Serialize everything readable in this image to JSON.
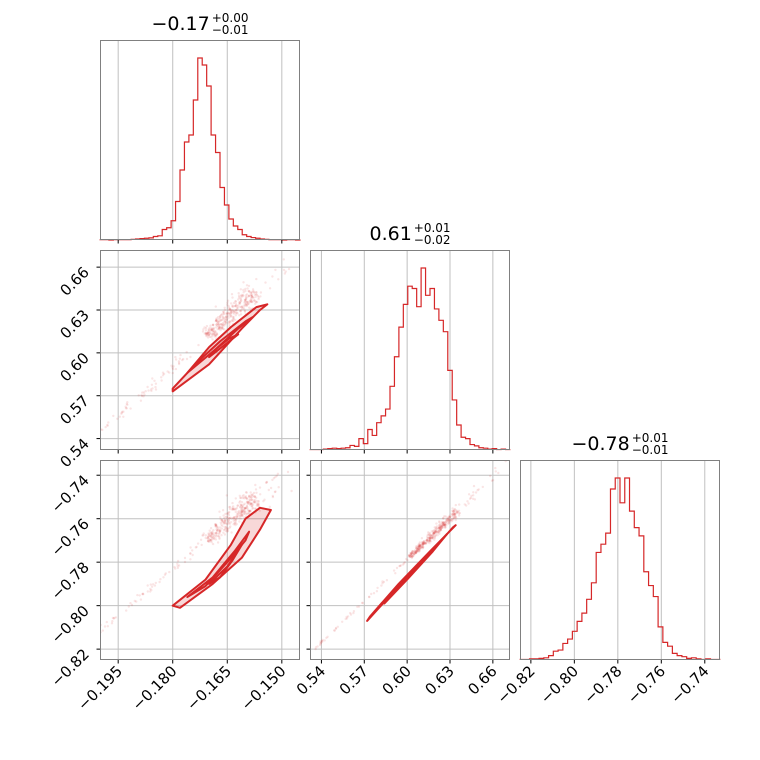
{
  "chart_data": {
    "type": "corner",
    "color": "#d62728",
    "grid": true,
    "parameters": [
      {
        "title": {
          "median": "−0.17",
          "plus": "+0.00",
          "minus": "−0.01"
        },
        "range": [
          -0.2,
          -0.145
        ],
        "ticks": [
          {
            "value": -0.195,
            "label": "−0.195"
          },
          {
            "value": -0.18,
            "label": "−0.180"
          },
          {
            "value": -0.165,
            "label": "−0.165"
          },
          {
            "value": -0.15,
            "label": "−0.150"
          }
        ],
        "histogram": {
          "x0": -0.2,
          "x1": -0.145,
          "counts": [
            1,
            1,
            0,
            1,
            1,
            1,
            1,
            2,
            3,
            4,
            5,
            6,
            10,
            12,
            30,
            35,
            55,
            110,
            200,
            280,
            300,
            400,
            520,
            500,
            440,
            300,
            250,
            150,
            100,
            60,
            40,
            30,
            15,
            10,
            7,
            5,
            3,
            2,
            1,
            1,
            1,
            0,
            1,
            1,
            0
          ]
        }
      },
      {
        "title": {
          "median": "0.61",
          "plus": "+0.01",
          "minus": "−0.02"
        },
        "range": [
          0.532,
          0.672
        ],
        "ticks": [
          {
            "value": 0.54,
            "label": "0.54"
          },
          {
            "value": 0.57,
            "label": "0.57"
          },
          {
            "value": 0.6,
            "label": "0.60"
          },
          {
            "value": 0.63,
            "label": "0.63"
          },
          {
            "value": 0.66,
            "label": "0.66"
          }
        ],
        "histogram": {
          "x0": 0.532,
          "x1": 0.672,
          "counts": [
            1,
            1,
            1,
            2,
            3,
            4,
            3,
            4,
            5,
            10,
            8,
            25,
            14,
            45,
            32,
            60,
            75,
            90,
            140,
            205,
            270,
            320,
            360,
            355,
            315,
            400,
            340,
            355,
            310,
            285,
            260,
            175,
            110,
            55,
            28,
            25,
            12,
            9,
            5,
            4,
            2,
            3,
            1,
            2,
            1
          ]
        }
      },
      {
        "title": {
          "median": "−0.78",
          "plus": "+0.01",
          "minus": "−0.01"
        },
        "range": [
          -0.825,
          -0.733
        ],
        "ticks": [
          {
            "value": -0.82,
            "label": "−0.82"
          },
          {
            "value": -0.8,
            "label": "−0.80"
          },
          {
            "value": -0.78,
            "label": "−0.78"
          },
          {
            "value": -0.76,
            "label": "−0.76"
          },
          {
            "value": -0.74,
            "label": "−0.74"
          }
        ],
        "histogram": {
          "x0": -0.825,
          "x1": -0.733,
          "counts": [
            1,
            1,
            2,
            2,
            3,
            4,
            8,
            16,
            18,
            30,
            38,
            52,
            70,
            85,
            110,
            140,
            195,
            210,
            230,
            310,
            330,
            285,
            330,
            270,
            240,
            225,
            160,
            135,
            115,
            60,
            32,
            25,
            12,
            8,
            6,
            3,
            4,
            2,
            1,
            2,
            1,
            1
          ]
        }
      }
    ],
    "pairs": [
      {
        "xparam": 0,
        "yparam": 1,
        "line": {
          "x": [
            -0.205,
            -0.148
          ],
          "y": [
            0.533,
            0.664
          ]
        },
        "core": [
          -0.182,
          -0.157
        ],
        "level_shapes": [
          [
            [
              -0.18,
              0.573
            ],
            [
              -0.17,
              0.592
            ],
            [
              -0.161,
              0.617
            ],
            [
              -0.156,
              0.63
            ],
            [
              -0.154,
              0.634
            ],
            [
              -0.157,
              0.632
            ],
            [
              -0.164,
              0.618
            ],
            [
              -0.17,
              0.604
            ],
            [
              -0.176,
              0.586
            ],
            [
              -0.18,
              0.575
            ]
          ],
          [
            [
              -0.176,
              0.586
            ],
            [
              -0.168,
              0.603
            ],
            [
              -0.162,
              0.617
            ],
            [
              -0.158,
              0.625
            ],
            [
              -0.16,
              0.622
            ],
            [
              -0.167,
              0.608
            ],
            [
              -0.173,
              0.594
            ]
          ],
          [
            [
              -0.17,
              0.597
            ],
            [
              -0.165,
              0.607
            ],
            [
              -0.162,
              0.613
            ],
            [
              -0.1645,
              0.61
            ],
            [
              -0.168,
              0.603
            ]
          ]
        ]
      },
      {
        "xparam": 0,
        "yparam": 2,
        "line": {
          "x": [
            -0.205,
            -0.148
          ],
          "y": [
            -0.818,
            -0.738
          ]
        },
        "core": [
          -0.182,
          -0.157
        ],
        "level_shapes": [
          [
            [
              -0.18,
              -0.8
            ],
            [
              -0.171,
              -0.788
            ],
            [
              -0.164,
              -0.772
            ],
            [
              -0.16,
              -0.76
            ],
            [
              -0.156,
              -0.755
            ],
            [
              -0.153,
              -0.756
            ],
            [
              -0.156,
              -0.765
            ],
            [
              -0.161,
              -0.778
            ],
            [
              -0.169,
              -0.79
            ],
            [
              -0.178,
              -0.801
            ]
          ],
          [
            [
              -0.176,
              -0.796
            ],
            [
              -0.169,
              -0.787
            ],
            [
              -0.163,
              -0.775
            ],
            [
              -0.159,
              -0.766
            ],
            [
              -0.16,
              -0.77
            ],
            [
              -0.165,
              -0.78
            ],
            [
              -0.171,
              -0.791
            ]
          ],
          [
            [
              -0.17,
              -0.79
            ],
            [
              -0.165,
              -0.782
            ],
            [
              -0.161,
              -0.772
            ],
            [
              -0.1635,
              -0.779
            ],
            [
              -0.167,
              -0.787
            ]
          ]
        ]
      },
      {
        "xparam": 1,
        "yparam": 2,
        "line": {
          "x": [
            0.532,
            0.672
          ],
          "y": [
            -0.822,
            -0.733
          ]
        },
        "core": [
          0.575,
          0.635
        ],
        "level_shapes": [
          [
            [
              0.572,
              -0.807
            ],
            [
              0.59,
              -0.794
            ],
            [
              0.612,
              -0.779
            ],
            [
              0.632,
              -0.764
            ],
            [
              0.634,
              -0.763
            ],
            [
              0.616,
              -0.775
            ],
            [
              0.594,
              -0.79
            ],
            [
              0.574,
              -0.805
            ]
          ],
          [
            [
              0.584,
              -0.799
            ],
            [
              0.6,
              -0.788
            ],
            [
              0.618,
              -0.775
            ],
            [
              0.628,
              -0.767
            ],
            [
              0.614,
              -0.777
            ],
            [
              0.598,
              -0.789
            ]
          ],
          [
            [
              0.598,
              -0.789
            ],
            [
              0.61,
              -0.78
            ],
            [
              0.618,
              -0.774
            ],
            [
              0.608,
              -0.782
            ]
          ]
        ]
      }
    ]
  }
}
